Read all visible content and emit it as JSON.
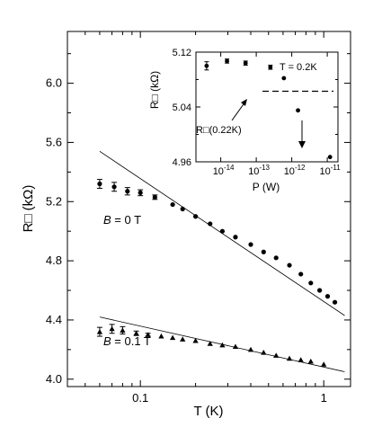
{
  "chart_data": [
    {
      "type": "scatter",
      "xscale": "log",
      "xlabel": "T (K)",
      "ylabel": "R□ (kΩ)",
      "xlim": [
        0.04,
        1.4
      ],
      "ylim": [
        3.95,
        6.35
      ],
      "x_ticks": [
        0.1,
        1
      ],
      "x_tick_labels": [
        "0.1",
        "1"
      ],
      "y_ticks": [
        4.0,
        4.4,
        4.8,
        5.2,
        5.6,
        6.0
      ],
      "y_tick_labels": [
        "4.0",
        "4.4",
        "4.8",
        "5.2",
        "5.6",
        "6.0"
      ],
      "grid": false,
      "series": [
        {
          "name": "B = 0 T",
          "label_prefix": "B",
          "label_suffix": " = 0 T",
          "marker": "circle",
          "x": [
            0.06,
            0.072,
            0.085,
            0.1,
            0.12,
            0.15,
            0.17,
            0.2,
            0.24,
            0.28,
            0.33,
            0.4,
            0.47,
            0.55,
            0.65,
            0.75,
            0.85,
            0.95,
            1.05,
            1.15
          ],
          "y": [
            5.32,
            5.3,
            5.27,
            5.26,
            5.23,
            5.18,
            5.15,
            5.1,
            5.05,
            5.0,
            4.96,
            4.91,
            4.86,
            4.82,
            4.77,
            4.71,
            4.65,
            4.6,
            4.56,
            4.52
          ],
          "error": [
            0.03,
            0.03,
            0.025,
            0.02,
            0.015,
            0,
            0,
            0,
            0,
            0,
            0,
            0,
            0,
            0,
            0,
            0,
            0,
            0,
            0,
            0
          ],
          "fit_line": {
            "x": [
              0.06,
              1.3
            ],
            "y": [
              5.54,
              4.43
            ]
          }
        },
        {
          "name": "B = 0.1 T",
          "label_prefix": "B",
          "label_suffix": " = 0.1 T",
          "marker": "triangle",
          "x": [
            0.06,
            0.07,
            0.08,
            0.095,
            0.11,
            0.13,
            0.15,
            0.17,
            0.2,
            0.24,
            0.28,
            0.33,
            0.4,
            0.47,
            0.55,
            0.65,
            0.75,
            0.85,
            1.0
          ],
          "y": [
            4.32,
            4.34,
            4.33,
            4.31,
            4.3,
            4.29,
            4.28,
            4.27,
            4.26,
            4.24,
            4.23,
            4.22,
            4.2,
            4.18,
            4.16,
            4.14,
            4.13,
            4.12,
            4.1
          ],
          "error": [
            0.03,
            0.03,
            0.025,
            0.015,
            0.01,
            0,
            0,
            0,
            0,
            0,
            0,
            0,
            0,
            0,
            0,
            0,
            0,
            0,
            0
          ],
          "fit_line": {
            "x": [
              0.06,
              1.3
            ],
            "y": [
              4.42,
              4.05
            ]
          }
        }
      ]
    },
    {
      "type": "scatter",
      "xscale": "log",
      "xlabel": "P (W)",
      "ylabel": "R□ (kΩ)",
      "xlim": [
        2e-15,
        2e-11
      ],
      "ylim": [
        4.96,
        5.12
      ],
      "x_ticks": [
        1e-14,
        1e-13,
        1e-12,
        1e-11
      ],
      "x_tick_labels": [
        {
          "base": "10",
          "exp": "-14"
        },
        {
          "base": "10",
          "exp": "-13"
        },
        {
          "base": "10",
          "exp": "-12"
        },
        {
          "base": "10",
          "exp": "-11"
        }
      ],
      "y_ticks": [
        4.96,
        5.04,
        5.12
      ],
      "y_tick_labels": [
        "4.96",
        "5.04",
        "5.12"
      ],
      "grid": false,
      "series": [
        {
          "marker": "circle",
          "x": [
            4e-15,
            1.5e-14,
            5e-14,
            2.5e-13,
            6e-13,
            1.5e-12,
            1.2e-11
          ],
          "y": [
            5.1,
            5.107,
            5.104,
            5.098,
            5.082,
            5.035,
            4.967
          ],
          "error": [
            0.006,
            0.003,
            0.003,
            0.003,
            0,
            0,
            0
          ]
        }
      ],
      "reference_line": {
        "label": "R□(0.22K)",
        "y": 5.063,
        "x_start": 1.5e-13,
        "x_end": 1.5e-11
      },
      "annotation": "T = 0.2K"
    }
  ]
}
